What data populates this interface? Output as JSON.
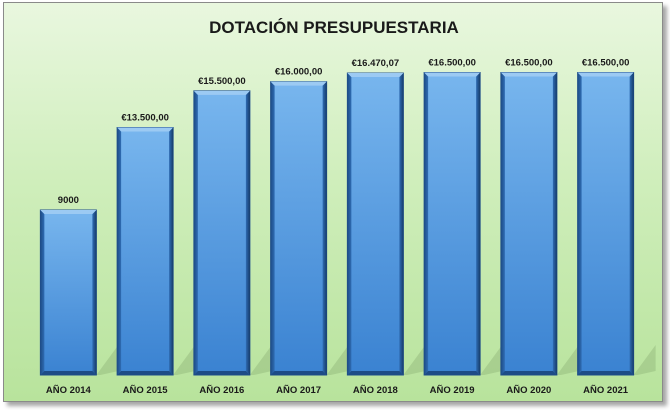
{
  "chart_data": {
    "type": "bar",
    "title": "DOTACIÓN PRESUPUESTARIA",
    "categories": [
      "AÑO 2014",
      "AÑO 2015",
      "AÑO 2016",
      "AÑO 2017",
      "AÑO 2018",
      "AÑO 2019",
      "AÑO 2020",
      "AÑO 2021"
    ],
    "values": [
      9000,
      13500,
      15500,
      16000,
      16470.07,
      16500,
      16500,
      16500
    ],
    "data_labels": [
      "9000",
      "€13.500,00",
      "€15.500,00",
      "€16.000,00",
      "€16.470,07",
      "€16.500,00",
      "€16.500,00",
      "€16.500,00"
    ],
    "ylim": [
      0,
      18000
    ],
    "grid": false,
    "legend": "none",
    "colors": {
      "bar_top": "#6fb0ea",
      "bar_bottom": "#3c84d2",
      "bar_edge": "#1f4f8c",
      "background": "#cfeebb"
    }
  }
}
